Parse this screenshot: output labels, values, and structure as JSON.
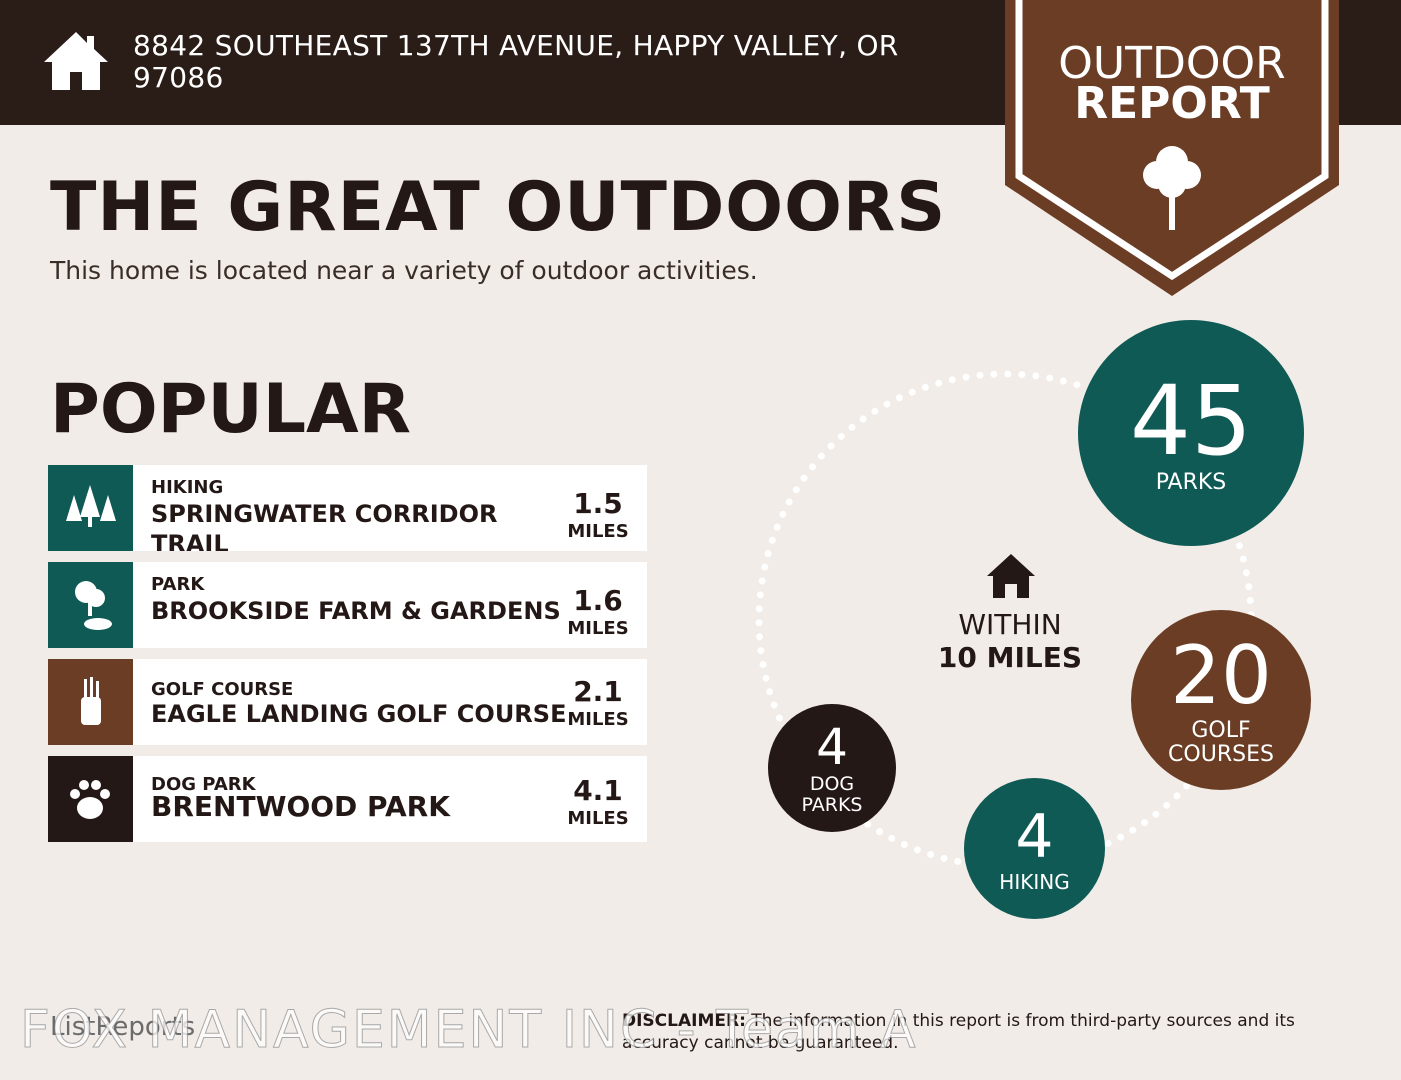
{
  "header": {
    "address": "8842 SOUTHEAST 137TH AVENUE, HAPPY VALLEY, OR 97086"
  },
  "badge": {
    "line1": "OUTDOOR",
    "line2": "REPORT"
  },
  "title": "THE GREAT OUTDOORS",
  "subtitle": "This home is located near a variety of outdoor activities.",
  "popular": {
    "heading": "POPULAR",
    "items": [
      {
        "category": "HIKING",
        "name": "SPRINGWATER CORRIDOR TRAIL",
        "distance": 1.5,
        "unit": "MILES"
      },
      {
        "category": "PARK",
        "name": "BROOKSIDE FARM & GARDENS",
        "distance": 1.6,
        "unit": "MILES"
      },
      {
        "category": "GOLF COURSE",
        "name": "EAGLE LANDING GOLF COURSE",
        "distance": 2.1,
        "unit": "MILES"
      },
      {
        "category": "DOG PARK",
        "name": "BRENTWOOD PARK",
        "distance": 4.1,
        "unit": "MILES"
      }
    ]
  },
  "summary": {
    "center": {
      "line1": "WITHIN",
      "line2": "10 MILES"
    },
    "circles": [
      {
        "count": 45,
        "label": "PARKS"
      },
      {
        "count": 20,
        "label": "GOLF COURSES"
      },
      {
        "count": 4,
        "label": "HIKING"
      },
      {
        "count": 4,
        "label": "DOG PARKS"
      }
    ]
  },
  "footer": {
    "brand": "ListReports",
    "disclaimer_label": "DISCLAIMER:",
    "disclaimer": "The information in this report is from third-party sources and its accuracy cannot be guaranteed.",
    "watermark": "FOX MANAGEMENT INC - Team A"
  }
}
